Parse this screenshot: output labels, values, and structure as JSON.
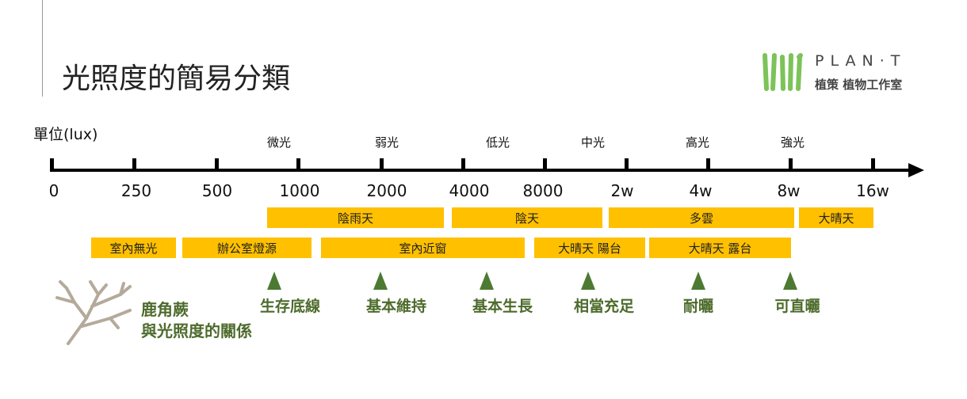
{
  "title": "光照度的簡易分類",
  "unit_label": "單位(lux)",
  "logo": {
    "brand": "PLAN·T",
    "subtitle": "植策 植物工作室"
  },
  "scale_ticks": [
    "0",
    "250",
    "500",
    "1000",
    "2000",
    "4000",
    "8000",
    "2w",
    "4w",
    "8w",
    "16w"
  ],
  "light_categories": [
    "微光",
    "弱光",
    "低光",
    "中光",
    "高光",
    "強光"
  ],
  "weather_bars": [
    "陰雨天",
    "陰天",
    "多雲",
    "大晴天"
  ],
  "location_bars": [
    "室內無光",
    "辦公室燈源",
    "室內近窗",
    "大晴天 陽台",
    "大晴天 露台"
  ],
  "plant_markers": [
    "生存底線",
    "基本維持",
    "基本生長",
    "相當充足",
    "耐曬",
    "可直曬"
  ],
  "plant_title": {
    "line1": "鹿角蕨",
    "line2": "與光照度的關係"
  },
  "colors": {
    "bar": "#ffc000",
    "marker": "#4d7a32",
    "logo_green": "#7cc35a"
  }
}
